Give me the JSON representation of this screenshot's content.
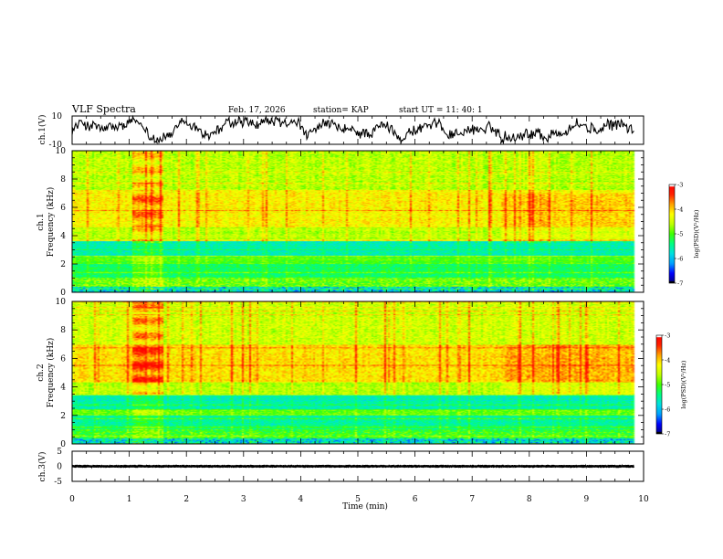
{
  "header": {
    "title": "VLF Spectra",
    "date": "Feb. 17, 2026",
    "station": "station= KAP",
    "start": "start  UT  =   11: 40: 1"
  },
  "colors": {
    "colormap": [
      "#ffffff",
      "#000080",
      "#0000ff",
      "#00a0ff",
      "#00e0e0",
      "#00ff80",
      "#40ff00",
      "#c0ff00",
      "#ffff00",
      "#ffa000",
      "#ff2000",
      "#ff0000",
      "#ffffff"
    ],
    "line": "#000000"
  },
  "chart_data": [
    {
      "type": "line",
      "name": "ch1-waveform",
      "ylabel": "ch.1(V)",
      "ylim": [
        -10,
        10
      ],
      "yticks": [
        10,
        -10
      ],
      "xlim": [
        0,
        10
      ],
      "approx_mean": 0,
      "approx_amplitude": 8
    },
    {
      "type": "heatmap",
      "name": "ch1-spectrogram",
      "ylabel_channel": "ch.1",
      "ylabel": "Frequency (kHz)",
      "xlim": [
        0,
        10
      ],
      "ylim": [
        0,
        10
      ],
      "yticks": [
        0,
        2,
        4,
        6,
        8,
        10
      ],
      "data_end_min": 9.83,
      "colorbar_label": "log(PSD)(V²/Hz)",
      "colorbar_range": [
        -7,
        -3
      ],
      "colorbar_ticks": [
        -3,
        -4,
        -5,
        -6,
        -7
      ],
      "bands": [
        {
          "f0": 0.0,
          "f1": 0.4,
          "level": -5.8,
          "var": 1.3
        },
        {
          "f0": 0.4,
          "f1": 1.0,
          "level": -4.9,
          "var": 0.8
        },
        {
          "f0": 1.0,
          "f1": 2.0,
          "level": -5.3,
          "var": 0.5
        },
        {
          "f0": 2.0,
          "f1": 2.6,
          "level": -5.0,
          "var": 0.5
        },
        {
          "f0": 2.6,
          "f1": 3.6,
          "level": -5.6,
          "var": 0.5
        },
        {
          "f0": 3.6,
          "f1": 4.6,
          "level": -4.6,
          "var": 0.5
        },
        {
          "f0": 4.6,
          "f1": 7.2,
          "level": -4.2,
          "var": 0.6
        },
        {
          "f0": 7.2,
          "f1": 10.0,
          "level": -4.6,
          "var": 0.6
        }
      ],
      "burst": {
        "t0": 1.05,
        "t1": 1.6,
        "boost": 0.7
      }
    },
    {
      "type": "heatmap",
      "name": "ch2-spectrogram",
      "ylabel_channel": "ch.2",
      "ylabel": "Frequency (kHz)",
      "xlim": [
        0,
        10
      ],
      "ylim": [
        0,
        10
      ],
      "yticks": [
        0,
        2,
        4,
        6,
        8,
        10
      ],
      "data_end_min": 9.83,
      "colorbar_label": "log(PSD)(V²/Hz)",
      "colorbar_range": [
        -7,
        -3
      ],
      "colorbar_ticks": [
        -3,
        -4,
        -5,
        -6,
        -7
      ],
      "bands": [
        {
          "f0": 0.0,
          "f1": 0.4,
          "level": -5.8,
          "var": 1.3
        },
        {
          "f0": 0.4,
          "f1": 1.0,
          "level": -5.1,
          "var": 0.7
        },
        {
          "f0": 1.0,
          "f1": 2.0,
          "level": -5.5,
          "var": 0.5
        },
        {
          "f0": 2.0,
          "f1": 2.4,
          "level": -4.9,
          "var": 0.5
        },
        {
          "f0": 2.4,
          "f1": 3.4,
          "level": -5.6,
          "var": 0.5
        },
        {
          "f0": 3.4,
          "f1": 4.4,
          "level": -4.6,
          "var": 0.5
        },
        {
          "f0": 4.4,
          "f1": 7.0,
          "level": -4.1,
          "var": 0.6
        },
        {
          "f0": 7.0,
          "f1": 10.0,
          "level": -4.5,
          "var": 0.6
        }
      ],
      "burst": {
        "t0": 1.05,
        "t1": 1.6,
        "boost": 0.8
      }
    },
    {
      "type": "line",
      "name": "ch3-waveform",
      "ylabel": "ch.3(V)",
      "ylim": [
        -5,
        5
      ],
      "yticks": [
        5,
        0,
        -5
      ],
      "xlim": [
        0,
        10
      ],
      "approx_mean": 0,
      "approx_amplitude": 0.5,
      "xlabel": "Time  (min)",
      "xticks": [
        0,
        1,
        2,
        3,
        4,
        5,
        6,
        7,
        8,
        9,
        10
      ]
    }
  ]
}
